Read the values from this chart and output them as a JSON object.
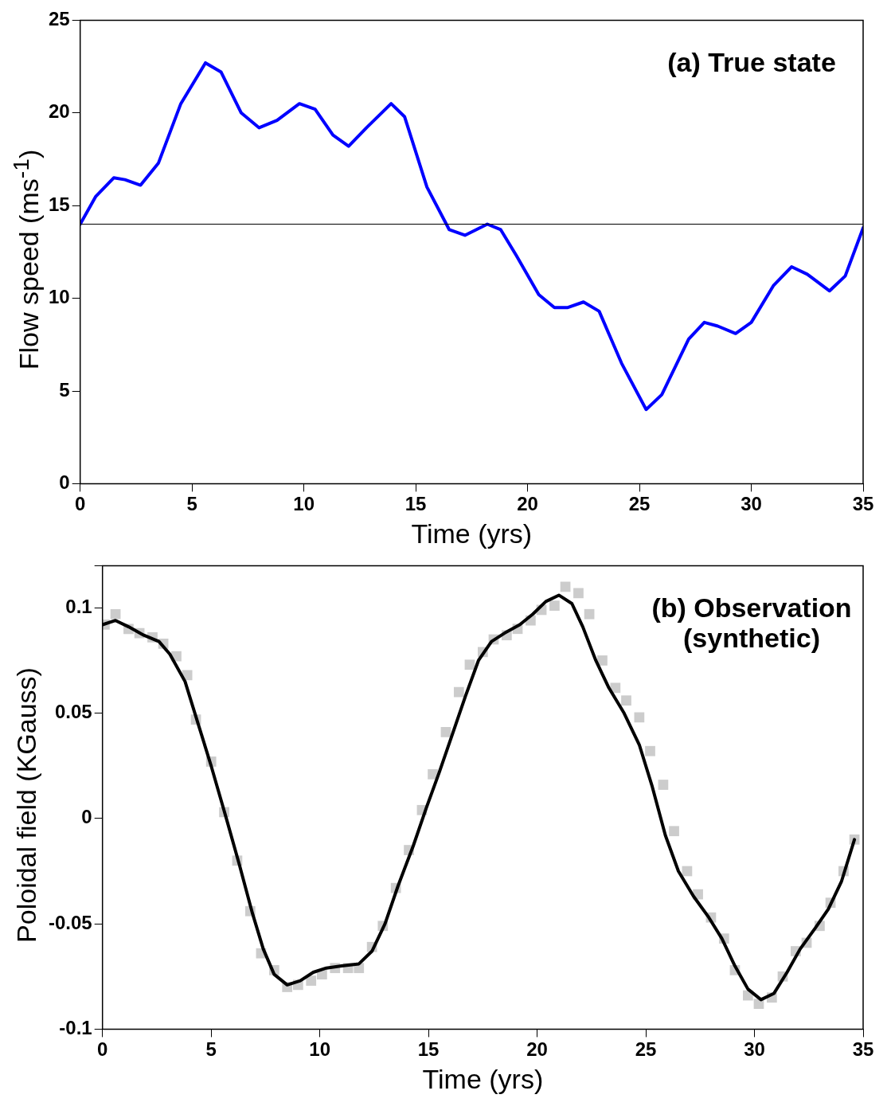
{
  "chart_data": [
    {
      "type": "line",
      "xlabel": "Time (yrs)",
      "ylabel": "Flow speed (ms$^{-1}$)",
      "annotations": [
        "(a) True state"
      ],
      "xlim": [
        0,
        35
      ],
      "xticks": [
        0,
        5,
        10,
        15,
        20,
        25,
        30,
        35
      ],
      "ylim": [
        0,
        25
      ],
      "yticks": [
        0,
        5,
        10,
        15,
        20,
        25
      ],
      "ref_lines": [
        {
          "axis": "y",
          "value": 14,
          "color": "#000000"
        }
      ],
      "series": [
        {
          "color": "#0000ff",
          "x": [
            0,
            0.7,
            1.5,
            2.0,
            2.7,
            3.5,
            4.5,
            5.6,
            6.3,
            7.2,
            8.0,
            8.8,
            9.8,
            10.5,
            11.3,
            12.0,
            12.8,
            13.9,
            14.5,
            15.5,
            16.5,
            17.2,
            18.2,
            18.8,
            19.5,
            20.5,
            21.2,
            21.8,
            22.5,
            23.2,
            24.2,
            25.3,
            26.0,
            27.2,
            27.9,
            28.5,
            29.3,
            30.0,
            31.0,
            31.8,
            32.5,
            33.5,
            34.2,
            35
          ],
          "values": [
            14.0,
            15.5,
            16.5,
            16.4,
            16.1,
            17.3,
            20.5,
            22.7,
            22.2,
            20.0,
            19.2,
            19.6,
            20.5,
            20.2,
            18.8,
            18.2,
            19.2,
            20.5,
            19.8,
            16.0,
            13.7,
            13.4,
            14.0,
            13.7,
            12.3,
            10.2,
            9.5,
            9.5,
            9.8,
            9.3,
            6.5,
            4.0,
            4.8,
            7.8,
            8.7,
            8.5,
            8.1,
            8.7,
            10.7,
            11.7,
            11.3,
            10.4,
            11.2,
            13.8
          ]
        }
      ]
    },
    {
      "type": "line",
      "xlabel": "Time (yrs)",
      "ylabel": "Poloidal field (KGauss)",
      "annotations": [
        "(b) Observation\n(synthetic)"
      ],
      "xlim": [
        0,
        35
      ],
      "xticks": [
        0,
        5,
        10,
        15,
        20,
        25,
        30,
        35
      ],
      "ylim": [
        -0.1,
        0.12
      ],
      "yticks": [
        -0.1,
        -0.05,
        0,
        0.05,
        0.1
      ],
      "series": [
        {
          "color": "#000000",
          "x": [
            0,
            0.6,
            1.2,
            1.9,
            2.6,
            3.1,
            3.8,
            4.4,
            5.0,
            5.7,
            6.3,
            6.9,
            7.4,
            7.9,
            8.5,
            9.1,
            9.7,
            10.3,
            11.0,
            11.8,
            12.4,
            13.0,
            13.6,
            14.3,
            14.9,
            15.5,
            16.1,
            16.7,
            17.3,
            17.9,
            18.5,
            19.2,
            19.8,
            20.4,
            21.0,
            21.6,
            22.1,
            22.7,
            23.3,
            24.0,
            24.7,
            25.3,
            25.9,
            26.5,
            27.2,
            27.9,
            28.5,
            29.1,
            29.7,
            30.3,
            30.9,
            31.5,
            32.1,
            32.8,
            33.4,
            34.0,
            34.6
          ],
          "values": [
            0.092,
            0.094,
            0.091,
            0.087,
            0.084,
            0.078,
            0.065,
            0.045,
            0.025,
            0.0,
            -0.022,
            -0.045,
            -0.062,
            -0.074,
            -0.079,
            -0.077,
            -0.073,
            -0.071,
            -0.07,
            -0.069,
            -0.063,
            -0.05,
            -0.032,
            -0.013,
            0.005,
            0.022,
            0.04,
            0.058,
            0.075,
            0.084,
            0.088,
            0.092,
            0.097,
            0.103,
            0.106,
            0.102,
            0.091,
            0.075,
            0.062,
            0.05,
            0.035,
            0.015,
            -0.008,
            -0.025,
            -0.037,
            -0.047,
            -0.057,
            -0.07,
            -0.081,
            -0.086,
            -0.083,
            -0.073,
            -0.062,
            -0.052,
            -0.043,
            -0.03,
            -0.01
          ]
        },
        {
          "type": "scatter",
          "color": "#cccccc",
          "marker": "square",
          "x": [
            0.1,
            0.6,
            1.2,
            1.7,
            2.3,
            2.8,
            3.4,
            3.9,
            4.3,
            5.0,
            5.6,
            6.2,
            6.8,
            7.3,
            7.9,
            8.5,
            9.0,
            9.6,
            10.1,
            10.7,
            11.3,
            11.8,
            12.4,
            12.9,
            13.5,
            14.1,
            14.7,
            15.2,
            15.8,
            16.4,
            16.9,
            17.5,
            18.0,
            18.6,
            19.1,
            19.7,
            20.2,
            20.8,
            21.3,
            21.9,
            22.4,
            23.0,
            23.6,
            24.1,
            24.7,
            25.2,
            25.8,
            26.3,
            26.9,
            27.4,
            28.0,
            28.6,
            29.1,
            29.7,
            30.2,
            30.8,
            31.3,
            31.9,
            32.4,
            33.0,
            33.5,
            34.1,
            34.6
          ],
          "values": [
            0.092,
            0.097,
            0.09,
            0.088,
            0.086,
            0.083,
            0.077,
            0.068,
            0.047,
            0.027,
            0.003,
            -0.02,
            -0.044,
            -0.064,
            -0.072,
            -0.08,
            -0.079,
            -0.077,
            -0.074,
            -0.071,
            -0.071,
            -0.071,
            -0.061,
            -0.051,
            -0.033,
            -0.015,
            0.004,
            0.021,
            0.041,
            0.06,
            0.073,
            0.079,
            0.085,
            0.087,
            0.09,
            0.094,
            0.099,
            0.101,
            0.11,
            0.107,
            0.097,
            0.075,
            0.062,
            0.056,
            0.048,
            0.032,
            0.016,
            -0.006,
            -0.025,
            -0.036,
            -0.047,
            -0.057,
            -0.072,
            -0.084,
            -0.088,
            -0.085,
            -0.075,
            -0.063,
            -0.059,
            -0.051,
            -0.04,
            -0.025,
            -0.01
          ]
        }
      ]
    }
  ]
}
